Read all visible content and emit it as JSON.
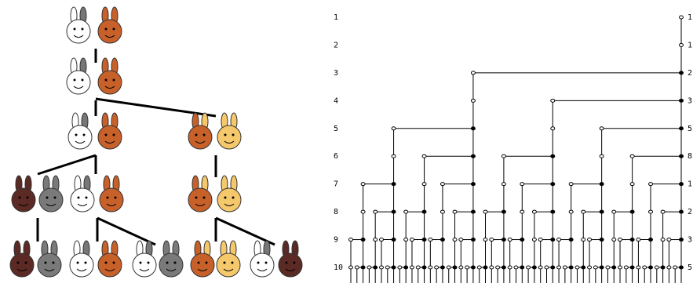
{
  "row_numbers": [
    "1",
    "2",
    "3",
    "4",
    "5",
    "6",
    "7",
    "8",
    "9",
    "10"
  ],
  "row_totals": [
    "1",
    "1",
    "2",
    "3",
    "5",
    "8",
    "1",
    "2",
    "3",
    "5"
  ]
}
